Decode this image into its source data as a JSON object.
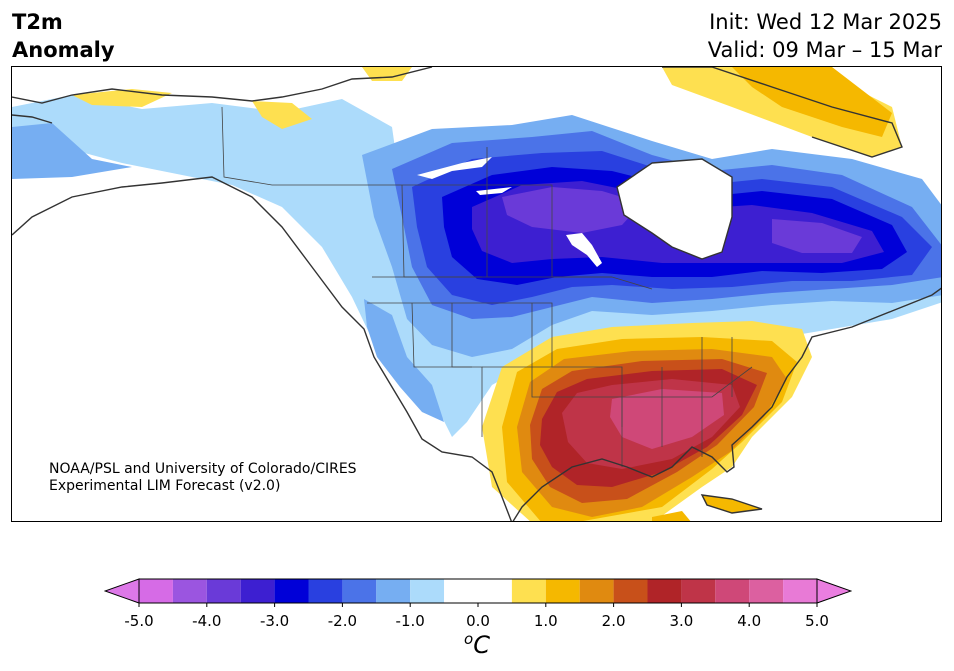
{
  "title": {
    "line1": "T2m",
    "line2": "Anomaly"
  },
  "init": "Init: Wed 12 Mar 2025",
  "valid": "Valid: 09 Mar – 15 Mar",
  "credit": {
    "line1": "NOAA/PSL and University of Colorado/CIRES",
    "line2": "Experimental LIM Forecast (v2.0)"
  },
  "colorbar": {
    "ticks": [
      "-5.0",
      "-4.0",
      "-3.0",
      "-2.0",
      "-1.0",
      "0.0",
      "1.0",
      "2.0",
      "3.0",
      "4.0",
      "5.0"
    ],
    "levels": [
      -5.0,
      -4.5,
      -4.0,
      -3.5,
      -3.0,
      -2.5,
      -2.0,
      -1.5,
      -1.0,
      -0.5,
      0.5,
      1.0,
      1.5,
      2.0,
      2.5,
      3.0,
      3.5,
      4.0,
      4.5,
      5.0
    ],
    "colors": [
      "#d66be6",
      "#9b55e0",
      "#6a3ad8",
      "#3d1fd1",
      "#0000d8",
      "#2940e0",
      "#4b73e8",
      "#76aef2",
      "#acdbfb",
      "#ffffff",
      "#fee050",
      "#f5b800",
      "#e08a10",
      "#c8501a",
      "#b02428",
      "#bf3448",
      "#cf4878",
      "#dc60a0",
      "#e87ad6"
    ],
    "under_color": "#dd78e8",
    "over_color": "#ea7ee0",
    "unit_main": "C",
    "unit_sup": "o"
  }
}
